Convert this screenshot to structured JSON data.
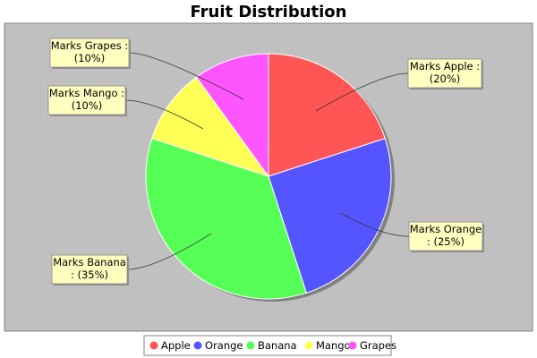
{
  "chart_data": {
    "type": "pie",
    "title": "Fruit Distribution",
    "categories": [
      "Apple",
      "Orange",
      "Banana",
      "Mango",
      "Grapes"
    ],
    "values": [
      20,
      25,
      35,
      10,
      10
    ],
    "slice_labels": [
      [
        "Marks Apple :",
        "(20%)"
      ],
      [
        "Marks Orange",
        ": (25%)"
      ],
      [
        "Marks Banana",
        ": (35%)"
      ],
      [
        "Marks Mango :",
        "(10%)"
      ],
      [
        "Marks Grapes :",
        "(10%)"
      ]
    ],
    "colors": [
      "#FF5555",
      "#5555FF",
      "#55FF55",
      "#FFFF55",
      "#FF55FF"
    ],
    "plot_background": "#C0C0C0",
    "label_background": "#FFFFC0",
    "legend_position": "bottom",
    "start_angle_degrees": 90,
    "direction": "clockwise"
  }
}
